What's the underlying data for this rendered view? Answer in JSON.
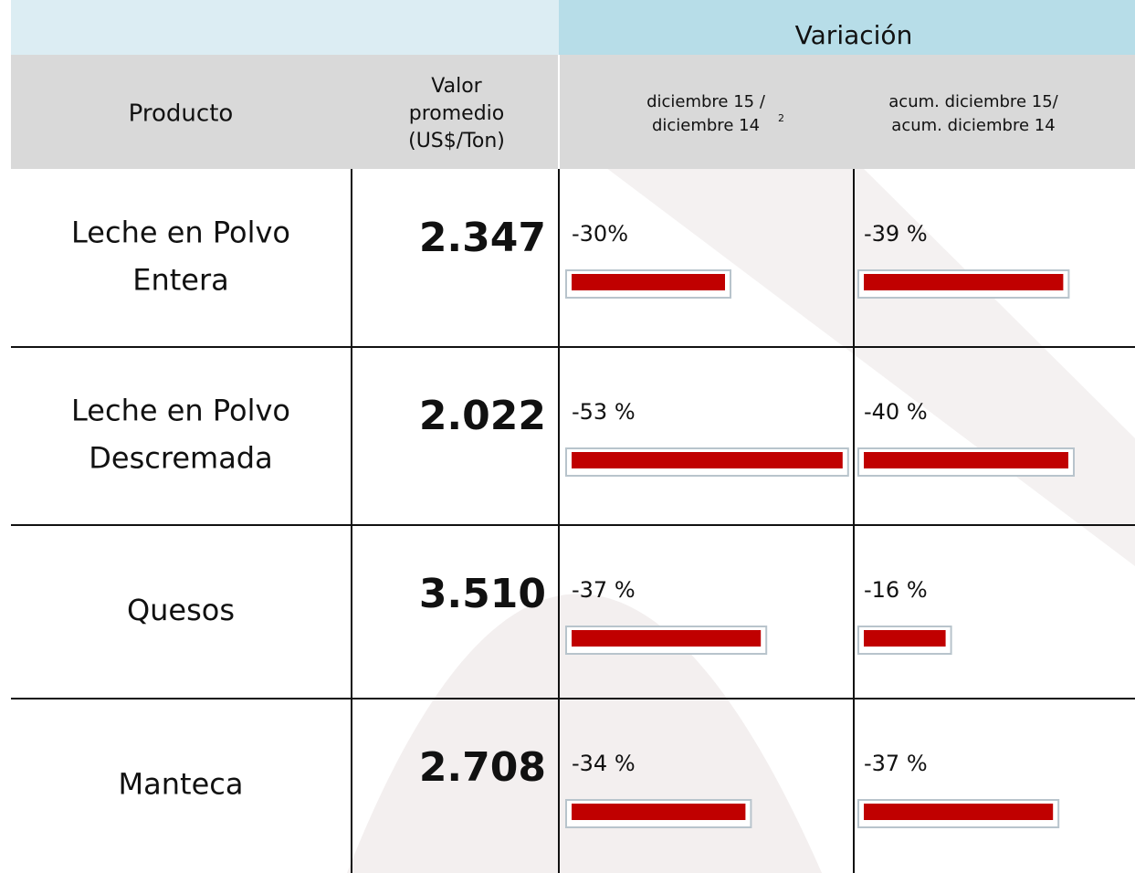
{
  "header": {
    "group": "Variación",
    "columns": [
      [
        "Producto"
      ],
      [
        "Valor",
        "promedio",
        "(US$/Ton)"
      ],
      [
        "diciembre  15 /",
        "diciembre 14"
      ],
      [
        "acum. diciembre 15/",
        "acum. diciembre 14"
      ]
    ],
    "footnote": "2"
  },
  "rows": [
    {
      "product": [
        "Leche en Polvo",
        "Entera"
      ],
      "value": "2.347",
      "var_month": {
        "value": -30,
        "label": "-30%"
      },
      "var_acum": {
        "value": -39,
        "label": "-39 %"
      }
    },
    {
      "product": [
        "Leche en Polvo",
        "Descremada"
      ],
      "value": "2.022",
      "var_month": {
        "value": -53,
        "label": "-53 %"
      },
      "var_acum": {
        "value": -40,
        "label": "-40 %"
      }
    },
    {
      "product": [
        "Quesos"
      ],
      "value": "3.510",
      "var_month": {
        "value": -37,
        "label": "-37 %"
      },
      "var_acum": {
        "value": -16,
        "label": "-16 %"
      }
    },
    {
      "product": [
        "Manteca"
      ],
      "value": "2.708",
      "var_month": {
        "value": -34,
        "label": "-34 %"
      },
      "var_acum": {
        "value": -37,
        "label": "-37 %"
      }
    }
  ]
}
